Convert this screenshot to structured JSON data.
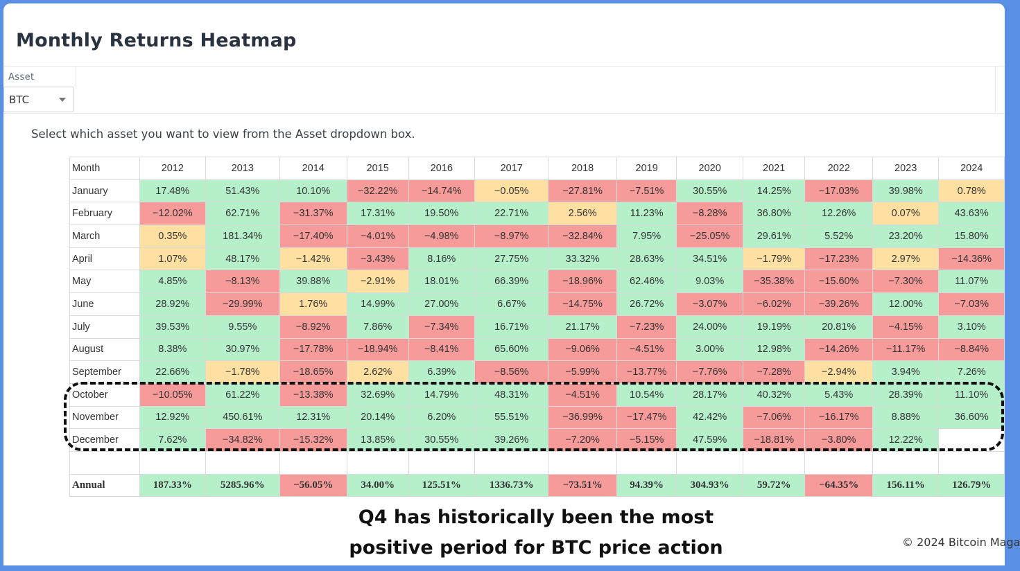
{
  "page": {
    "title": "Monthly Returns Heatmap"
  },
  "filter": {
    "label": "Asset",
    "selected": "BTC"
  },
  "help_text": "Select which asset you want to view from the Asset dropdown box.",
  "colors": {
    "positive": "#b5f0cb",
    "negative": "#f79a9a",
    "near_zero": "#fde0a2",
    "frame": "#5a8fe6"
  },
  "chart_data": {
    "type": "heatmap",
    "row_header": "Month",
    "columns": [
      "2012",
      "2013",
      "2014",
      "2015",
      "2016",
      "2017",
      "2018",
      "2019",
      "2020",
      "2021",
      "2022",
      "2023",
      "2024"
    ],
    "rows": [
      {
        "label": "January",
        "values": [
          "17.48%",
          "51.43%",
          "10.10%",
          "−32.22%",
          "−14.74%",
          "−0.05%",
          "−27.81%",
          "−7.51%",
          "30.55%",
          "14.25%",
          "−17.03%",
          "39.98%",
          "0.78%"
        ],
        "tone": [
          "p",
          "p",
          "p",
          "n",
          "n",
          "z",
          "n",
          "n",
          "p",
          "p",
          "n",
          "p",
          "z"
        ]
      },
      {
        "label": "February",
        "values": [
          "−12.02%",
          "62.71%",
          "−31.37%",
          "17.31%",
          "19.50%",
          "22.71%",
          "2.56%",
          "11.23%",
          "−8.28%",
          "36.80%",
          "12.26%",
          "0.07%",
          "43.63%"
        ],
        "tone": [
          "n",
          "p",
          "n",
          "p",
          "p",
          "p",
          "z",
          "p",
          "n",
          "p",
          "p",
          "z",
          "p"
        ]
      },
      {
        "label": "March",
        "values": [
          "0.35%",
          "181.34%",
          "−17.40%",
          "−4.01%",
          "−4.98%",
          "−8.97%",
          "−32.84%",
          "7.95%",
          "−25.05%",
          "29.61%",
          "5.52%",
          "23.20%",
          "15.80%"
        ],
        "tone": [
          "z",
          "p",
          "n",
          "n",
          "n",
          "n",
          "n",
          "p",
          "n",
          "p",
          "p",
          "p",
          "p"
        ]
      },
      {
        "label": "April",
        "values": [
          "1.07%",
          "48.17%",
          "−1.42%",
          "−3.43%",
          "8.16%",
          "27.75%",
          "33.32%",
          "28.63%",
          "34.51%",
          "−1.79%",
          "−17.23%",
          "2.97%",
          "−14.36%"
        ],
        "tone": [
          "z",
          "p",
          "z",
          "n",
          "p",
          "p",
          "p",
          "p",
          "p",
          "z",
          "n",
          "z",
          "n"
        ]
      },
      {
        "label": "May",
        "values": [
          "4.85%",
          "−8.13%",
          "39.88%",
          "−2.91%",
          "18.01%",
          "66.39%",
          "−18.96%",
          "62.46%",
          "9.03%",
          "−35.38%",
          "−15.60%",
          "−7.30%",
          "11.07%"
        ],
        "tone": [
          "p",
          "n",
          "p",
          "z",
          "p",
          "p",
          "n",
          "p",
          "p",
          "n",
          "n",
          "n",
          "p"
        ]
      },
      {
        "label": "June",
        "values": [
          "28.92%",
          "−29.99%",
          "1.76%",
          "14.99%",
          "27.00%",
          "6.67%",
          "−14.75%",
          "26.72%",
          "−3.07%",
          "−6.02%",
          "−39.26%",
          "12.00%",
          "−7.03%"
        ],
        "tone": [
          "p",
          "n",
          "z",
          "p",
          "p",
          "p",
          "n",
          "p",
          "n",
          "n",
          "n",
          "p",
          "n"
        ]
      },
      {
        "label": "July",
        "values": [
          "39.53%",
          "9.55%",
          "−8.92%",
          "7.86%",
          "−7.34%",
          "16.71%",
          "21.17%",
          "−7.23%",
          "24.00%",
          "19.19%",
          "20.81%",
          "−4.15%",
          "3.10%"
        ],
        "tone": [
          "p",
          "p",
          "n",
          "p",
          "n",
          "p",
          "p",
          "n",
          "p",
          "p",
          "p",
          "n",
          "p"
        ]
      },
      {
        "label": "August",
        "values": [
          "8.38%",
          "30.97%",
          "−17.78%",
          "−18.94%",
          "−8.41%",
          "65.60%",
          "−9.06%",
          "−4.51%",
          "3.00%",
          "12.98%",
          "−14.26%",
          "−11.17%",
          "−8.84%"
        ],
        "tone": [
          "p",
          "p",
          "n",
          "n",
          "n",
          "p",
          "n",
          "n",
          "p",
          "p",
          "n",
          "n",
          "n"
        ]
      },
      {
        "label": "September",
        "values": [
          "22.66%",
          "−1.78%",
          "−18.65%",
          "2.62%",
          "6.39%",
          "−8.56%",
          "−5.99%",
          "−13.77%",
          "−7.76%",
          "−7.28%",
          "−2.94%",
          "3.94%",
          "7.26%"
        ],
        "tone": [
          "p",
          "z",
          "n",
          "z",
          "p",
          "n",
          "n",
          "n",
          "n",
          "n",
          "z",
          "p",
          "p"
        ]
      },
      {
        "label": "October",
        "values": [
          "−10.05%",
          "61.22%",
          "−13.38%",
          "32.69%",
          "14.79%",
          "48.31%",
          "−4.51%",
          "10.54%",
          "28.17%",
          "40.32%",
          "5.43%",
          "28.39%",
          "11.10%"
        ],
        "tone": [
          "n",
          "p",
          "n",
          "p",
          "p",
          "p",
          "n",
          "p",
          "p",
          "p",
          "p",
          "p",
          "p"
        ]
      },
      {
        "label": "November",
        "values": [
          "12.92%",
          "450.61%",
          "12.31%",
          "20.14%",
          "6.20%",
          "55.51%",
          "−36.99%",
          "−17.47%",
          "42.42%",
          "−7.06%",
          "−16.17%",
          "8.88%",
          "36.60%"
        ],
        "tone": [
          "p",
          "p",
          "p",
          "p",
          "p",
          "p",
          "n",
          "n",
          "p",
          "n",
          "n",
          "p",
          "p"
        ]
      },
      {
        "label": "December",
        "values": [
          "7.62%",
          "−34.82%",
          "−15.32%",
          "13.85%",
          "30.55%",
          "39.26%",
          "−7.20%",
          "−5.15%",
          "47.59%",
          "−18.81%",
          "−3.80%",
          "12.22%",
          ""
        ],
        "tone": [
          "p",
          "n",
          "n",
          "p",
          "p",
          "p",
          "n",
          "n",
          "p",
          "n",
          "n",
          "p",
          "b"
        ]
      }
    ],
    "annual": {
      "label": "Annual",
      "values": [
        "187.33%",
        "5285.96%",
        "−56.05%",
        "34.00%",
        "125.51%",
        "1336.73%",
        "−73.51%",
        "94.39%",
        "304.93%",
        "59.72%",
        "−64.35%",
        "156.11%",
        "126.79%"
      ],
      "tone": [
        "p",
        "p",
        "n",
        "p",
        "p",
        "p",
        "n",
        "p",
        "p",
        "p",
        "n",
        "p",
        "p"
      ]
    }
  },
  "annotation": {
    "caption_line1": "Q4 has historically been the most",
    "caption_line2": "positive period for BTC price action",
    "copyright": "© 2024 Bitcoin Maga"
  }
}
